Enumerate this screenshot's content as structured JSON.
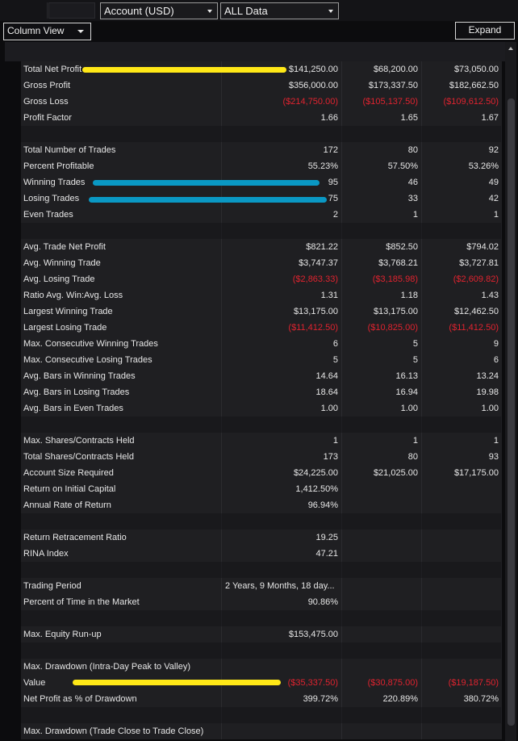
{
  "toolbar": {
    "account_select": "Account (USD)",
    "data_select": "ALL Data",
    "view_select": "Column View",
    "expand_label": "Expand"
  },
  "colors": {
    "highlight_yellow": "#ffe817",
    "highlight_cyan": "#0a98c4",
    "negative_red": "#e0232f"
  },
  "rows": [
    {
      "type": "data",
      "label": "Total Net Profit",
      "values": [
        "$141,250.00",
        "$68,200.00",
        "$73,050.00"
      ],
      "neg": false,
      "highlight": "yellow"
    },
    {
      "type": "data",
      "label": "Gross Profit",
      "values": [
        "$356,000.00",
        "$173,337.50",
        "$182,662.50"
      ],
      "neg": false
    },
    {
      "type": "data",
      "label": "Gross Loss",
      "values": [
        "($214,750.00)",
        "($105,137.50)",
        "($109,612.50)"
      ],
      "neg": true
    },
    {
      "type": "data",
      "label": "Profit Factor",
      "values": [
        "1.66",
        "1.65",
        "1.67"
      ],
      "neg": false
    },
    {
      "type": "sep"
    },
    {
      "type": "data",
      "label": "Total Number of Trades",
      "values": [
        "172",
        "80",
        "92"
      ],
      "neg": false
    },
    {
      "type": "data",
      "label": "Percent Profitable",
      "values": [
        "55.23%",
        "57.50%",
        "53.26%"
      ],
      "neg": false
    },
    {
      "type": "data",
      "label": "Winning Trades",
      "values": [
        "95",
        "46",
        "49"
      ],
      "neg": false,
      "highlight": "cyan"
    },
    {
      "type": "data",
      "label": "Losing Trades",
      "values": [
        "75",
        "33",
        "42"
      ],
      "neg": false,
      "highlight": "cyan"
    },
    {
      "type": "data",
      "label": "Even Trades",
      "values": [
        "2",
        "1",
        "1"
      ],
      "neg": false
    },
    {
      "type": "sep"
    },
    {
      "type": "data",
      "label": "Avg. Trade Net Profit",
      "values": [
        "$821.22",
        "$852.50",
        "$794.02"
      ],
      "neg": false
    },
    {
      "type": "data",
      "label": "Avg. Winning Trade",
      "values": [
        "$3,747.37",
        "$3,768.21",
        "$3,727.81"
      ],
      "neg": false
    },
    {
      "type": "data",
      "label": "Avg. Losing Trade",
      "values": [
        "($2,863.33)",
        "($3,185.98)",
        "($2,609.82)"
      ],
      "neg": true
    },
    {
      "type": "data",
      "label": "Ratio Avg. Win:Avg. Loss",
      "values": [
        "1.31",
        "1.18",
        "1.43"
      ],
      "neg": false
    },
    {
      "type": "data",
      "label": "Largest Winning Trade",
      "values": [
        "$13,175.00",
        "$13,175.00",
        "$12,462.50"
      ],
      "neg": false
    },
    {
      "type": "data",
      "label": "Largest Losing Trade",
      "values": [
        "($11,412.50)",
        "($10,825.00)",
        "($11,412.50)"
      ],
      "neg": true
    },
    {
      "type": "data",
      "label": "Max. Consecutive Winning Trades",
      "values": [
        "6",
        "5",
        "9"
      ],
      "neg": false
    },
    {
      "type": "data",
      "label": "Max. Consecutive Losing Trades",
      "values": [
        "5",
        "5",
        "6"
      ],
      "neg": false
    },
    {
      "type": "data",
      "label": "Avg. Bars in Winning Trades",
      "values": [
        "14.64",
        "16.13",
        "13.24"
      ],
      "neg": false
    },
    {
      "type": "data",
      "label": "Avg. Bars in Losing Trades",
      "values": [
        "18.64",
        "16.94",
        "19.98"
      ],
      "neg": false
    },
    {
      "type": "data",
      "label": "Avg. Bars in Even Trades",
      "values": [
        "1.00",
        "1.00",
        "1.00"
      ],
      "neg": false
    },
    {
      "type": "sep"
    },
    {
      "type": "data",
      "label": "Max. Shares/Contracts Held",
      "values": [
        "1",
        "1",
        "1"
      ],
      "neg": false
    },
    {
      "type": "data",
      "label": "Total Shares/Contracts Held",
      "values": [
        "173",
        "80",
        "93"
      ],
      "neg": false
    },
    {
      "type": "data",
      "label": "Account Size Required",
      "values": [
        "$24,225.00",
        "$21,025.00",
        "$17,175.00"
      ],
      "neg": false
    },
    {
      "type": "data",
      "label": "Return on Initial Capital",
      "values": [
        "1,412.50%",
        "",
        ""
      ],
      "neg": false
    },
    {
      "type": "data",
      "label": "Annual Rate of Return",
      "values": [
        "96.94%",
        "",
        ""
      ],
      "neg": false
    },
    {
      "type": "sep"
    },
    {
      "type": "data",
      "label": "Return Retracement Ratio",
      "values": [
        "19.25",
        "",
        ""
      ],
      "neg": false
    },
    {
      "type": "data",
      "label": "RINA Index",
      "values": [
        "47.21",
        "",
        ""
      ],
      "neg": false
    },
    {
      "type": "sep"
    },
    {
      "type": "data",
      "label": "Trading Period",
      "values": [
        "2 Years, 9 Months, 18 day...",
        "",
        ""
      ],
      "neg": false,
      "leftAlign": true
    },
    {
      "type": "data",
      "label": "Percent of Time in the Market",
      "values": [
        "90.86%",
        "",
        ""
      ],
      "neg": false
    },
    {
      "type": "sep"
    },
    {
      "type": "data",
      "label": "Max. Equity Run-up",
      "values": [
        "$153,475.00",
        "",
        ""
      ],
      "neg": false
    },
    {
      "type": "sep"
    },
    {
      "type": "data",
      "label": "Max. Drawdown (Intra-Day Peak to Valley)",
      "values": [
        "",
        "",
        ""
      ],
      "neg": false
    },
    {
      "type": "data",
      "label": "Value",
      "values": [
        "($35,337.50)",
        "($30,875.00)",
        "($19,187.50)"
      ],
      "neg": true,
      "highlight": "yellow"
    },
    {
      "type": "data",
      "label": "Net Profit as % of Drawdown",
      "values": [
        "399.72%",
        "220.89%",
        "380.72%"
      ],
      "neg": false
    },
    {
      "type": "sep"
    },
    {
      "type": "data",
      "label": "Max. Drawdown (Trade Close to Trade Close)",
      "values": [
        "",
        "",
        ""
      ],
      "neg": false
    }
  ]
}
